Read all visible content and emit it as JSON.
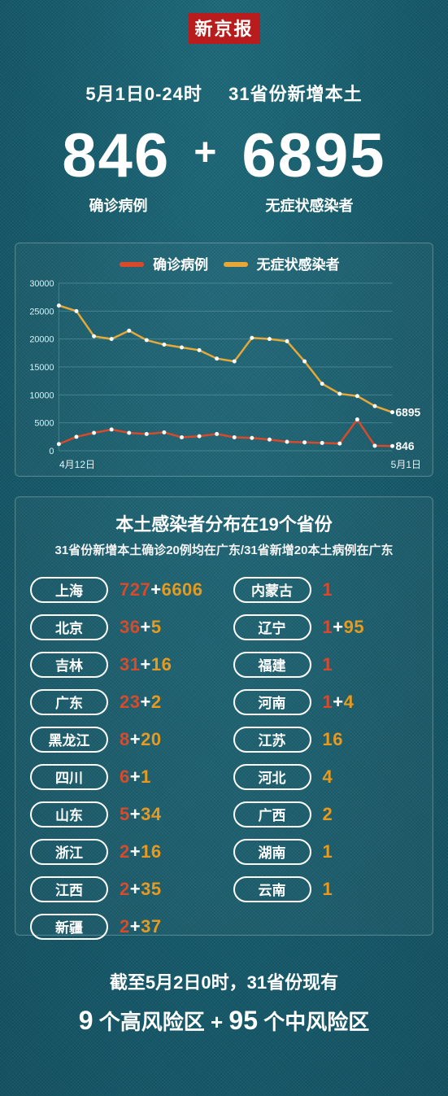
{
  "brand": "新京报",
  "headline": {
    "date_range": "5月1日0-24时",
    "scope": "31省份新增本土",
    "confirmed": "846",
    "plus": "+",
    "asymptomatic": "6895",
    "confirmed_label": "确诊病例",
    "asymptomatic_label": "无症状感染者"
  },
  "chart": {
    "type": "line",
    "legend": {
      "confirmed": "确诊病例",
      "asymptomatic": "无症状感染者"
    },
    "colors": {
      "confirmed": "#d94a2b",
      "asymptomatic": "#e6a838",
      "grid": "#5e98a5",
      "marker": "#ffffff",
      "background": "transparent"
    },
    "line_width": 2.5,
    "marker_radius": 2.5,
    "y": {
      "ylim": [
        0,
        30000
      ],
      "ticks": [
        0,
        5000,
        10000,
        15000,
        20000,
        25000,
        30000
      ]
    },
    "x": {
      "start_label": "4月12日",
      "end_label": "5月1日",
      "count": 20
    },
    "series_confirmed": [
      1200,
      2500,
      3200,
      3800,
      3200,
      3000,
      3300,
      2400,
      2600,
      3000,
      2400,
      2300,
      2000,
      1600,
      1500,
      1400,
      1300,
      5600,
      900,
      846
    ],
    "series_asymptomatic": [
      26000,
      25000,
      20500,
      20000,
      21500,
      19800,
      19000,
      18500,
      18000,
      16500,
      16000,
      20200,
      20000,
      19600,
      16000,
      12000,
      10200,
      9800,
      8000,
      6895
    ],
    "end_labels": {
      "confirmed": "846",
      "asymptomatic": "6895"
    }
  },
  "dist": {
    "title": "本土感染者分布在19个省份",
    "subtitle": "31省份新增本土确诊20例均在广东/31省新增20本土病例在广东",
    "left": [
      {
        "name": "上海",
        "conf": "727",
        "asym": "6606"
      },
      {
        "name": "北京",
        "conf": "36",
        "asym": "5"
      },
      {
        "name": "吉林",
        "conf": "31",
        "asym": "16"
      },
      {
        "name": "广东",
        "conf": "23",
        "asym": "2"
      },
      {
        "name": "黑龙江",
        "conf": "8",
        "asym": "20"
      },
      {
        "name": "四川",
        "conf": "6",
        "asym": "1"
      },
      {
        "name": "山东",
        "conf": "5",
        "asym": "34"
      },
      {
        "name": "浙江",
        "conf": "2",
        "asym": "16"
      },
      {
        "name": "江西",
        "conf": "2",
        "asym": "35"
      },
      {
        "name": "新疆",
        "conf": "2",
        "asym": "37"
      }
    ],
    "right": [
      {
        "name": "内蒙古",
        "conf": "1"
      },
      {
        "name": "辽宁",
        "conf": "1",
        "asym": "95"
      },
      {
        "name": "福建",
        "conf": "1"
      },
      {
        "name": "河南",
        "conf": "1",
        "asym": "4"
      },
      {
        "name": "江苏",
        "asym": "16"
      },
      {
        "name": "河北",
        "asym": "4"
      },
      {
        "name": "广西",
        "asym": "2"
      },
      {
        "name": "湖南",
        "asym": "1"
      },
      {
        "name": "云南",
        "asym": "1"
      }
    ]
  },
  "footer": {
    "line1": "截至5月2日0时，31省份现有",
    "high_num": "9",
    "high_txt": "个高风险区",
    "plus": "+",
    "mid_num": "95",
    "mid_txt": "个中风险区"
  }
}
